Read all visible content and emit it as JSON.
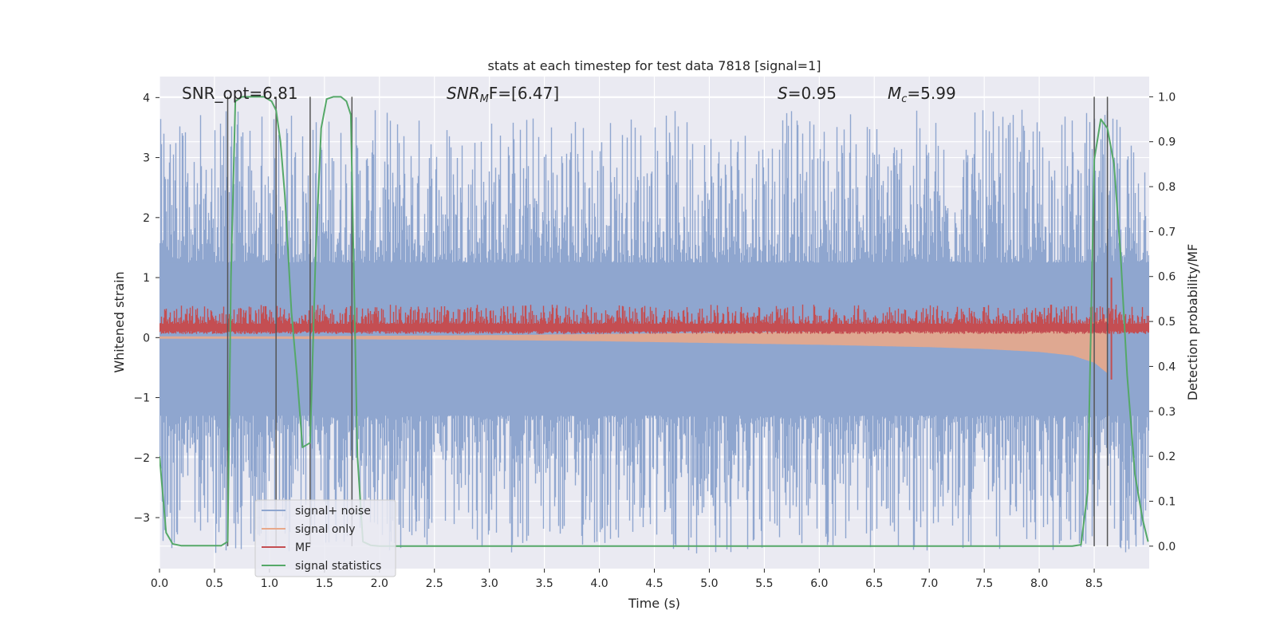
{
  "chart_data": {
    "type": "line",
    "title": "stats at each timestep for test data 7818 [signal=1]",
    "xlabel": "Time (s)",
    "ylabel": "Whitened strain",
    "ylabel_right": "Detection probability/MF",
    "xlim": [
      0.0,
      9.0
    ],
    "ylim": [
      -3.85,
      4.35
    ],
    "ylim_right": [
      -0.05,
      1.045
    ],
    "x_ticks": [
      0.0,
      0.5,
      1.0,
      1.5,
      2.0,
      2.5,
      3.0,
      3.5,
      4.0,
      4.5,
      5.0,
      5.5,
      6.0,
      6.5,
      7.0,
      7.5,
      8.0,
      8.5
    ],
    "x_tick_labels": [
      "0.0",
      "0.5",
      "1.0",
      "1.5",
      "2.0",
      "2.5",
      "3.0",
      "3.5",
      "4.0",
      "4.5",
      "5.0",
      "5.5",
      "6.0",
      "6.5",
      "7.0",
      "7.5",
      "8.0",
      "8.5"
    ],
    "y_ticks": [
      -3,
      -2,
      -1,
      0,
      1,
      2,
      3,
      4
    ],
    "y_tick_labels": [
      "−3",
      "−2",
      "−1",
      "0",
      "1",
      "2",
      "3",
      "4"
    ],
    "y_right_ticks": [
      0.0,
      0.1,
      0.2,
      0.3,
      0.4,
      0.5,
      0.6,
      0.7,
      0.8,
      0.9,
      1.0
    ],
    "y_right_tick_labels": [
      "0.0",
      "0.1",
      "0.2",
      "0.3",
      "0.4",
      "0.5",
      "0.6",
      "0.7",
      "0.8",
      "0.9",
      "1.0"
    ],
    "annotations": [
      {
        "text": "SNR_opt=6.81"
      },
      {
        "sym": "SNR",
        "sub": "M",
        "rest": "F=[6.47]"
      },
      {
        "sym": "S",
        "rest": "=0.95"
      },
      {
        "sym": "M",
        "sub": "c",
        "rest": "=5.99"
      }
    ],
    "vertical_lines": [
      0.62,
      1.06,
      1.37,
      1.75,
      8.5,
      8.62
    ],
    "signal_statistics": {
      "axis": "right",
      "x": [
        0.0,
        0.06,
        0.12,
        0.2,
        0.3,
        0.4,
        0.5,
        0.56,
        0.62,
        0.65,
        0.69,
        0.75,
        0.85,
        0.95,
        1.02,
        1.06,
        1.1,
        1.14,
        1.2,
        1.25,
        1.3,
        1.37,
        1.42,
        1.47,
        1.52,
        1.58,
        1.65,
        1.7,
        1.74,
        1.76,
        1.8,
        1.85,
        1.92,
        2.0,
        3.0,
        4.0,
        5.0,
        6.0,
        7.0,
        8.0,
        8.3,
        8.38,
        8.44,
        8.5,
        8.56,
        8.62,
        8.68,
        8.74,
        8.8,
        8.87,
        8.94,
        8.99
      ],
      "values": [
        0.2,
        0.03,
        0.005,
        0.001,
        0.001,
        0.001,
        0.001,
        0.001,
        0.01,
        0.6,
        0.99,
        1.0,
        1.0,
        1.0,
        0.99,
        0.97,
        0.9,
        0.78,
        0.52,
        0.38,
        0.22,
        0.23,
        0.65,
        0.93,
        0.995,
        1.0,
        1.0,
        0.99,
        0.96,
        0.7,
        0.2,
        0.01,
        0.002,
        0.0,
        0.0,
        0.0,
        0.0,
        0.0,
        0.0,
        0.0,
        0.0,
        0.003,
        0.12,
        0.86,
        0.95,
        0.93,
        0.85,
        0.65,
        0.38,
        0.16,
        0.06,
        0.01
      ]
    },
    "mf_baseline": {
      "axis": "left",
      "value": 0.18,
      "spread": 0.32
    },
    "mf_spike": {
      "axis": "left",
      "x": 8.62,
      "high": 1.0,
      "low": -0.7
    },
    "signal_noise_envelope": {
      "axis": "left",
      "core_low": -1.3,
      "core_high": 1.25,
      "spike_max": 3.8,
      "spike_min": -3.6
    },
    "signal_only_envelope": {
      "axis": "left",
      "x": [
        0.0,
        1.0,
        2.0,
        3.0,
        4.0,
        5.0,
        6.0,
        7.0,
        7.5,
        8.0,
        8.3,
        8.5,
        8.62
      ],
      "upper": [
        0.02,
        0.02,
        0.03,
        0.04,
        0.06,
        0.08,
        0.1,
        0.12,
        0.14,
        0.17,
        0.2,
        0.26,
        0.33
      ],
      "lower": [
        -0.02,
        -0.02,
        -0.03,
        -0.04,
        -0.06,
        -0.09,
        -0.12,
        -0.16,
        -0.19,
        -0.24,
        -0.3,
        -0.42,
        -0.6
      ]
    },
    "legend": {
      "position": "lower-left",
      "entries": [
        {
          "label": "signal+ noise",
          "color": "#8fa6cf"
        },
        {
          "label": "signal only",
          "color": "#e8a88a"
        },
        {
          "label": "MF",
          "color": "#c44e52"
        },
        {
          "label": "signal statistics",
          "color": "#55a868"
        }
      ]
    },
    "colors": {
      "background": "#eaeaf2",
      "grid": "#ffffff",
      "signal_noise": "#8fa6cf",
      "signal_only": "#e8a88a",
      "mf": "#c44e52",
      "signal_statistics": "#55a868",
      "vline": "#555555"
    }
  }
}
